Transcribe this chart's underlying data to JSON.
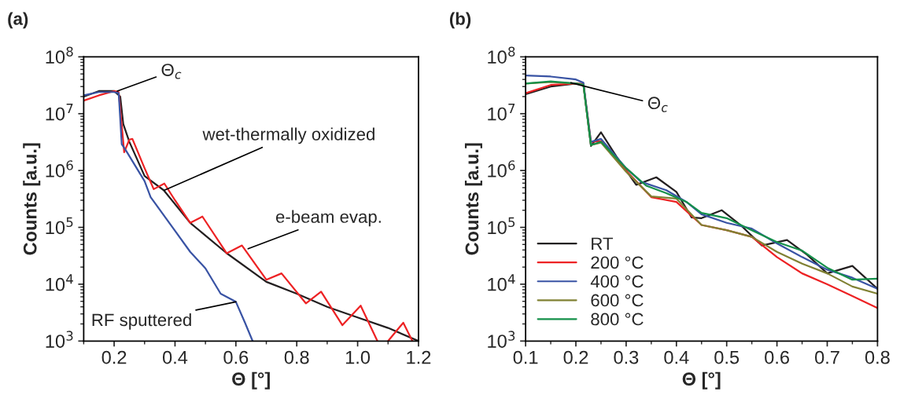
{
  "chart_data": [
    {
      "type": "line",
      "title": "(a)",
      "xlabel": "Θ [°]",
      "ylabel": "Counts [a.u.]",
      "log": "y",
      "grid": false,
      "legend": false,
      "xlim": [
        0.1,
        1.2
      ],
      "xticks": [
        {
          "value": 0.2,
          "label": "0.2"
        },
        {
          "value": 0.4,
          "label": "0.4"
        },
        {
          "value": 0.6,
          "label": "0.6"
        },
        {
          "value": 0.8,
          "label": "0.8"
        },
        {
          "value": 1.0,
          "label": "1.0"
        },
        {
          "value": 1.2,
          "label": "1.2"
        }
      ],
      "ylim": [
        1000,
        100000000
      ],
      "yticks": [
        {
          "value": 1000,
          "label": "10$^{3}$"
        },
        {
          "value": 10000,
          "label": "10$^{4}$"
        },
        {
          "value": 100000,
          "label": "10$^{5}$"
        },
        {
          "value": 1000000,
          "label": "10$^{6}$"
        },
        {
          "value": 10000000,
          "label": "10$^{7}$"
        },
        {
          "value": 100000000,
          "label": "10$^{8}$"
        }
      ],
      "series": [
        {
          "color": "#231f20",
          "x": [
            0.1,
            0.15,
            0.2,
            0.22,
            0.23,
            0.25,
            0.3,
            0.363,
            0.45,
            0.57,
            0.7,
            0.8,
            0.9,
            1.0,
            1.1,
            1.2
          ],
          "values": [
            20000000.0,
            25000000.0,
            25000000.0,
            20000000.0,
            6600000.0,
            3200000.0,
            800000.0,
            450000.0,
            120000.0,
            35000.0,
            11000.0,
            6800.0,
            4000.0,
            2600.0,
            1700.0,
            1000.0
          ]
        },
        {
          "color": "#ed2224",
          "x": [
            0.1,
            0.15,
            0.2,
            0.215,
            0.225,
            0.233,
            0.25,
            0.26,
            0.3,
            0.33,
            0.365,
            0.4,
            0.45,
            0.49,
            0.57,
            0.62,
            0.7,
            0.75,
            0.83,
            0.88,
            0.95,
            1.01,
            1.065,
            1.07,
            1.1,
            1.15,
            1.18
          ],
          "values": [
            17000000.0,
            21000000.0,
            25000000.0,
            24000000.0,
            6300000.0,
            2100000.0,
            3500000.0,
            3600000.0,
            1100000.0,
            470000.0,
            590000.0,
            300000.0,
            120000.0,
            155000.0,
            35000.0,
            48000.0,
            12000.0,
            15500.0,
            4600.0,
            7400.0,
            1900.0,
            4200.0,
            1000.0,
            null,
            1000.0,
            2100.0,
            1000.0
          ]
        },
        {
          "color": "#3953a4",
          "x": [
            0.1,
            0.15,
            0.2,
            0.215,
            0.225,
            0.24,
            0.3,
            0.32,
            0.4,
            0.45,
            0.5,
            0.55,
            0.6,
            0.63,
            0.655
          ],
          "values": [
            21000000.0,
            24000000.0,
            24000000.0,
            23000000.0,
            2900000.0,
            2200000.0,
            650000.0,
            340000.0,
            87000.0,
            37000.0,
            19000.0,
            6800.0,
            4900.0,
            2100.0,
            1000.0
          ]
        }
      ],
      "annotations": [
        {
          "text": "Θ$_{c}$",
          "x": 0.21,
          "y": 25000000.0
        },
        {
          "text": "wet-thermally oxidized",
          "x": 0.365,
          "y": 450000.0
        },
        {
          "text": "e-beam evap.",
          "x": 0.64,
          "y": 42000.0
        },
        {
          "text": "RF sputtered",
          "x": 0.6,
          "y": 4900.0
        }
      ]
    },
    {
      "type": "line",
      "title": "(b)",
      "xlabel": "Θ [°]",
      "ylabel": "Counts [a.u.]",
      "log": "y",
      "grid": false,
      "legend": "bottom left",
      "xlim": [
        0.1,
        0.8
      ],
      "xticks": [
        0.1,
        0.2,
        0.3,
        0.4,
        0.5,
        0.6,
        0.7,
        0.8
      ],
      "ylim": [
        1000,
        100000000
      ],
      "yticks": [
        {
          "value": 1000,
          "label": "10$^{3}$"
        },
        {
          "value": 10000,
          "label": "10$^{4}$"
        },
        {
          "value": 100000,
          "label": "10$^{5}$"
        },
        {
          "value": 1000000,
          "label": "10$^{6}$"
        },
        {
          "value": 10000000,
          "label": "10$^{7}$"
        },
        {
          "value": 100000000,
          "label": "10$^{8}$"
        }
      ],
      "series": [
        {
          "name": "RT",
          "color": "#231f20",
          "x": [
            0.1,
            0.15,
            0.2,
            0.215,
            0.23,
            0.25,
            0.28,
            0.3,
            0.32,
            0.36,
            0.4,
            0.43,
            0.45,
            0.49,
            0.53,
            0.57,
            0.62,
            0.66,
            0.7,
            0.75,
            0.8
          ],
          "values": [
            22000000.0,
            30000000.0,
            34000000.0,
            33000000.0,
            2700000.0,
            4700000.0,
            1800000.0,
            1000000.0,
            560000.0,
            760000.0,
            420000.0,
            150000.0,
            145000.0,
            200000.0,
            105000.0,
            48000.0,
            60000.0,
            33000.0,
            15500.0,
            21000.0,
            8300.0
          ]
        },
        {
          "name": "200 °C",
          "color": "#ed2224",
          "x": [
            0.1,
            0.15,
            0.2,
            0.215,
            0.23,
            0.25,
            0.3,
            0.35,
            0.4,
            0.45,
            0.5,
            0.55,
            0.6,
            0.65,
            0.7,
            0.75,
            0.8
          ],
          "values": [
            23000000.0,
            32000000.0,
            34000000.0,
            33000000.0,
            3200000.0,
            3300000.0,
            1000000.0,
            340000.0,
            280000.0,
            110000.0,
            89000.0,
            68000.0,
            30000.0,
            15500.0,
            10000.0,
            6200.0,
            3800.0
          ]
        },
        {
          "name": "400 °C",
          "color": "#3953a4",
          "x": [
            0.1,
            0.15,
            0.2,
            0.215,
            0.23,
            0.25,
            0.3,
            0.33,
            0.38,
            0.42,
            0.45,
            0.5,
            0.55,
            0.6,
            0.65,
            0.7,
            0.75,
            0.8
          ],
          "values": [
            47000000.0,
            45000000.0,
            40000000.0,
            35000000.0,
            3200000.0,
            3600000.0,
            1100000.0,
            630000.0,
            450000.0,
            280000.0,
            170000.0,
            120000.0,
            95000.0,
            52000.0,
            30000.0,
            18000.0,
            13000.0,
            8300.0
          ]
        },
        {
          "name": "600 °C",
          "color": "#808133",
          "x": [
            0.1,
            0.15,
            0.2,
            0.215,
            0.23,
            0.25,
            0.3,
            0.35,
            0.4,
            0.45,
            0.5,
            0.55,
            0.6,
            0.65,
            0.7,
            0.75,
            0.8
          ],
          "values": [
            34000000.0,
            36000000.0,
            34000000.0,
            32000000.0,
            2800000.0,
            3100000.0,
            950000.0,
            350000.0,
            320000.0,
            110000.0,
            89000.0,
            68000.0,
            37000.0,
            23000.0,
            15500.0,
            9100.0,
            6800.0
          ]
        },
        {
          "name": "800 °C",
          "color": "#14904a",
          "x": [
            0.1,
            0.15,
            0.2,
            0.215,
            0.23,
            0.25,
            0.3,
            0.34,
            0.38,
            0.42,
            0.45,
            0.5,
            0.55,
            0.6,
            0.65,
            0.7,
            0.75,
            0.8
          ],
          "values": [
            34000000.0,
            37000000.0,
            34000000.0,
            32000000.0,
            2800000.0,
            3200000.0,
            1100000.0,
            540000.0,
            400000.0,
            280000.0,
            180000.0,
            145000.0,
            89000.0,
            55000.0,
            39000.0,
            19500.0,
            12000.0,
            12500.0
          ]
        }
      ],
      "annotations": [
        {
          "text": "Θ$_{c}$",
          "x": 0.19,
          "y": 35000000.0
        }
      ]
    }
  ]
}
